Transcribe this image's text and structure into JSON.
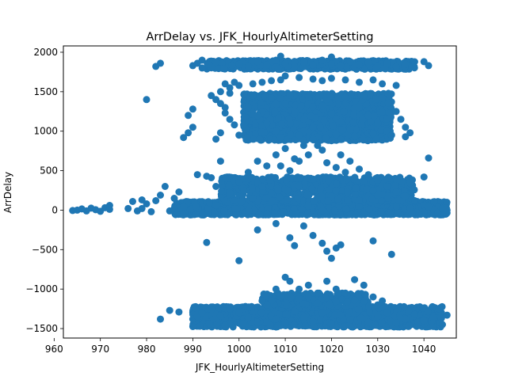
{
  "chart_data": {
    "type": "scatter",
    "title": "ArrDelay vs. JFK_HourlyAltimeterSetting",
    "xlabel": "JFK_HourlyAltimeterSetting",
    "ylabel": "ArrDelay",
    "xlim": [
      962,
      1047
    ],
    "ylim": [
      -1620,
      2080
    ],
    "xticks": [
      960,
      970,
      980,
      990,
      1000,
      1010,
      1020,
      1030,
      1040
    ],
    "yticks": [
      -1500,
      -1000,
      -500,
      0,
      500,
      1000,
      1500,
      2000
    ],
    "grid": false,
    "legend": "none",
    "marker_color": "#1f77b4",
    "series": [
      {
        "points": [
          [
            964,
            -5
          ],
          [
            965,
            0
          ],
          [
            966,
            15
          ],
          [
            967,
            -10
          ],
          [
            968,
            25
          ],
          [
            969,
            5
          ],
          [
            970,
            -15
          ],
          [
            971,
            30
          ],
          [
            972,
            60
          ],
          [
            972,
            10
          ],
          [
            976,
            20
          ],
          [
            977,
            110
          ],
          [
            978,
            -10
          ],
          [
            979,
            130
          ],
          [
            979,
            20
          ],
          [
            980,
            80
          ],
          [
            981,
            -20
          ],
          [
            980,
            1400
          ],
          [
            982,
            1820
          ],
          [
            983,
            1860
          ],
          [
            982,
            120
          ],
          [
            983,
            190
          ],
          [
            984,
            300
          ],
          [
            985,
            -10
          ],
          [
            986,
            150
          ],
          [
            987,
            230
          ],
          [
            988,
            920
          ],
          [
            989,
            980
          ],
          [
            990,
            1050
          ],
          [
            989,
            1200
          ],
          [
            990,
            1280
          ],
          [
            990,
            1830
          ],
          [
            991,
            1860
          ],
          [
            992,
            1800
          ],
          [
            992,
            1900
          ],
          [
            991,
            450
          ],
          [
            993,
            430
          ],
          [
            994,
            410
          ],
          [
            995,
            300
          ],
          [
            996,
            620
          ],
          [
            994,
            1450
          ],
          [
            995,
            1400
          ],
          [
            996,
            1350
          ],
          [
            997,
            1230
          ],
          [
            998,
            1480
          ],
          [
            997,
            1300
          ],
          [
            996,
            1500
          ],
          [
            998,
            1150
          ],
          [
            999,
            1080
          ],
          [
            1000,
            950
          ],
          [
            995,
            900
          ],
          [
            996,
            980
          ],
          [
            997,
            1600
          ],
          [
            998,
            1550
          ],
          [
            999,
            1620
          ],
          [
            1000,
            1580
          ],
          [
            1003,
            1600
          ],
          [
            1005,
            1620
          ],
          [
            1007,
            1640
          ],
          [
            1009,
            1650
          ],
          [
            1010,
            1700
          ],
          [
            1013,
            1680
          ],
          [
            1016,
            1660
          ],
          [
            1018,
            1640
          ],
          [
            1020,
            1670
          ],
          [
            1023,
            1650
          ],
          [
            1026,
            1620
          ],
          [
            1029,
            1650
          ],
          [
            1031,
            1600
          ],
          [
            1034,
            1580
          ],
          [
            1002,
            1300
          ],
          [
            1004,
            1200
          ],
          [
            1006,
            1100
          ],
          [
            1008,
            1000
          ],
          [
            1010,
            1350
          ],
          [
            1012,
            1250
          ],
          [
            1014,
            1150
          ],
          [
            1016,
            1050
          ],
          [
            1018,
            1320
          ],
          [
            1020,
            1220
          ],
          [
            1022,
            1120
          ],
          [
            1024,
            1020
          ],
          [
            1026,
            1300
          ],
          [
            1028,
            1200
          ],
          [
            1030,
            1100
          ],
          [
            1032,
            1000
          ],
          [
            1034,
            1250
          ],
          [
            1035,
            1150
          ],
          [
            1036,
            1050
          ],
          [
            1037,
            980
          ],
          [
            1003,
            1450
          ],
          [
            1007,
            1420
          ],
          [
            1011,
            1460
          ],
          [
            1015,
            1440
          ],
          [
            1019,
            1470
          ],
          [
            1023,
            1430
          ],
          [
            1027,
            1450
          ],
          [
            1031,
            1420
          ],
          [
            1001,
            1080
          ],
          [
            1009,
            920
          ],
          [
            1013,
            950
          ],
          [
            1017,
            930
          ],
          [
            1021,
            960
          ],
          [
            1025,
            940
          ],
          [
            1029,
            970
          ],
          [
            1033,
            950
          ],
          [
            1036,
            930
          ],
          [
            1000,
            1850
          ],
          [
            1002,
            1820
          ],
          [
            1004,
            1880
          ],
          [
            1006,
            1840
          ],
          [
            1008,
            1900
          ],
          [
            1010,
            1860
          ],
          [
            1012,
            1820
          ],
          [
            1014,
            1870
          ],
          [
            1016,
            1840
          ],
          [
            1018,
            1900
          ],
          [
            1020,
            1850
          ],
          [
            1022,
            1830
          ],
          [
            1024,
            1880
          ],
          [
            1026,
            1840
          ],
          [
            1028,
            1870
          ],
          [
            1030,
            1830
          ],
          [
            1032,
            1860
          ],
          [
            1034,
            1820
          ],
          [
            1036,
            1850
          ],
          [
            1040,
            1880
          ],
          [
            1041,
            1830
          ],
          [
            1009,
            1950
          ],
          [
            1020,
            1940
          ],
          [
            998,
            220
          ],
          [
            1000,
            350
          ],
          [
            1002,
            480
          ],
          [
            1004,
            620
          ],
          [
            1006,
            560
          ],
          [
            1008,
            700
          ],
          [
            1010,
            780
          ],
          [
            1012,
            650
          ],
          [
            1014,
            820
          ],
          [
            1016,
            900
          ],
          [
            1018,
            760
          ],
          [
            1020,
            880
          ],
          [
            1022,
            700
          ],
          [
            1024,
            620
          ],
          [
            1026,
            520
          ],
          [
            1028,
            450
          ],
          [
            1030,
            380
          ],
          [
            1032,
            300
          ],
          [
            1034,
            230
          ],
          [
            1036,
            180
          ],
          [
            1038,
            120
          ],
          [
            1040,
            420
          ],
          [
            1041,
            660
          ],
          [
            1005,
            300
          ],
          [
            1007,
            420
          ],
          [
            1009,
            560
          ],
          [
            1011,
            500
          ],
          [
            1013,
            620
          ],
          [
            1015,
            700
          ],
          [
            1017,
            820
          ],
          [
            1019,
            600
          ],
          [
            1021,
            540
          ],
          [
            1023,
            480
          ],
          [
            1025,
            410
          ],
          [
            1027,
            360
          ],
          [
            1029,
            250
          ],
          [
            1031,
            200
          ],
          [
            1003,
            150
          ],
          [
            1001,
            250
          ],
          [
            999,
            120
          ],
          [
            993,
            -410
          ],
          [
            1000,
            -640
          ],
          [
            1004,
            -250
          ],
          [
            1008,
            -170
          ],
          [
            1011,
            -350
          ],
          [
            1012,
            -450
          ],
          [
            1014,
            -200
          ],
          [
            1016,
            -320
          ],
          [
            1018,
            -420
          ],
          [
            1019,
            -520
          ],
          [
            1020,
            -610
          ],
          [
            1021,
            -480
          ],
          [
            1022,
            -440
          ],
          [
            1029,
            -390
          ],
          [
            1033,
            -560
          ],
          [
            1010,
            -850
          ],
          [
            1011,
            -900
          ],
          [
            1013,
            -1000
          ],
          [
            1015,
            -950
          ],
          [
            1017,
            -1050
          ],
          [
            1019,
            -900
          ],
          [
            1021,
            -1000
          ],
          [
            1023,
            -1050
          ],
          [
            1025,
            -880
          ],
          [
            1027,
            -950
          ],
          [
            1029,
            -1100
          ],
          [
            1031,
            -1150
          ],
          [
            1009,
            -1100
          ],
          [
            1008,
            -1000
          ],
          [
            1007,
            -1150
          ],
          [
            983,
            -1380
          ],
          [
            985,
            -1270
          ],
          [
            987,
            -1290
          ],
          [
            990,
            -1380
          ],
          [
            991,
            -1350
          ],
          [
            992,
            -1300
          ],
          [
            994,
            -1260
          ],
          [
            996,
            -1340
          ],
          [
            998,
            -1250
          ],
          [
            1000,
            -1300
          ],
          [
            1002,
            -1360
          ],
          [
            1004,
            -1420
          ],
          [
            1006,
            -1200
          ],
          [
            1008,
            -1380
          ],
          [
            1010,
            -1430
          ],
          [
            1012,
            -1280
          ],
          [
            1014,
            -1360
          ],
          [
            1016,
            -1410
          ],
          [
            1018,
            -1300
          ],
          [
            1020,
            -1440
          ],
          [
            1022,
            -1330
          ],
          [
            1024,
            -1390
          ],
          [
            1026,
            -1260
          ],
          [
            1028,
            -1420
          ],
          [
            1030,
            -1350
          ],
          [
            1032,
            -1300
          ],
          [
            1034,
            -1430
          ],
          [
            1036,
            -1380
          ],
          [
            1038,
            -1320
          ],
          [
            1040,
            -1400
          ],
          [
            1042,
            -1360
          ],
          [
            1044,
            -1450
          ],
          [
            1045,
            -1330
          ],
          [
            1005,
            -1150
          ],
          [
            1009,
            -1080
          ],
          [
            1013,
            -1120
          ],
          [
            1017,
            -1180
          ],
          [
            1021,
            -1160
          ],
          [
            1025,
            -1140
          ],
          [
            1030,
            -1200
          ],
          [
            1040,
            -20
          ],
          [
            1042,
            10
          ],
          [
            1043,
            -30
          ],
          [
            1044,
            20
          ],
          [
            1045,
            0
          ],
          [
            1041,
            40
          ],
          [
            1039,
            -50
          ],
          [
            1037,
            30
          ]
        ],
        "bands": [
          {
            "x": [
              986,
              1045
            ],
            "y": [
              -60,
              110
            ],
            "count": 2200
          },
          {
            "x": [
              996,
              1038
            ],
            "y": [
              100,
              420
            ],
            "count": 700
          },
          {
            "x": [
              1001,
              1033
            ],
            "y": [
              880,
              1480
            ],
            "count": 1500
          },
          {
            "x": [
              993,
              1038
            ],
            "y": [
              1785,
              1895
            ],
            "count": 700
          },
          {
            "x": [
              990,
              1044
            ],
            "y": [
              -1480,
              -1220
            ],
            "count": 1500
          },
          {
            "x": [
              1005,
              1028
            ],
            "y": [
              -1230,
              -1050
            ],
            "count": 220
          }
        ]
      }
    ]
  }
}
